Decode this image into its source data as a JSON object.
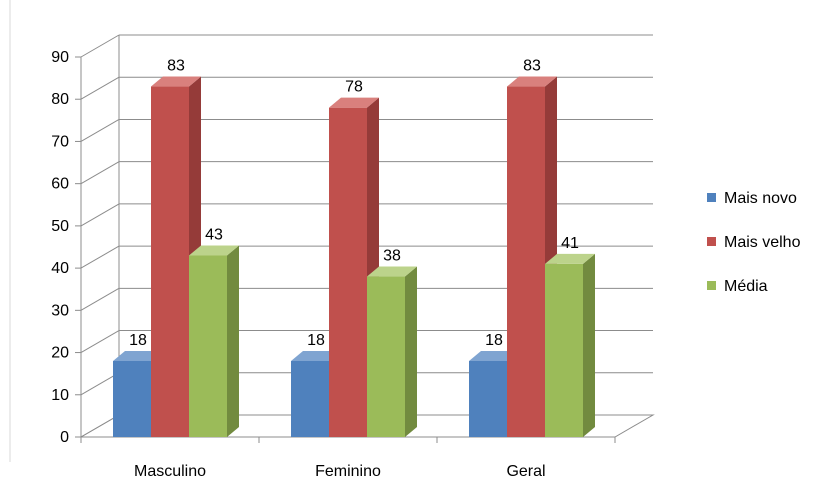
{
  "chart_data": {
    "type": "bar",
    "categories": [
      "Masculino",
      "Feminino",
      "Geral"
    ],
    "series": [
      {
        "name": "Mais novo",
        "values": [
          18,
          18,
          18
        ],
        "color": "#4F81BD",
        "color_dark": "#3A6494",
        "color_light": "#7FA4D1"
      },
      {
        "name": "Mais velho",
        "values": [
          83,
          78,
          83
        ],
        "color": "#C0504D",
        "color_dark": "#953B39",
        "color_light": "#D9807D"
      },
      {
        "name": "Média",
        "values": [
          43,
          38,
          41
        ],
        "color": "#9BBB59",
        "color_dark": "#728B3F",
        "color_light": "#BCD38B"
      }
    ],
    "y_ticks": [
      "0",
      "10",
      "20",
      "30",
      "40",
      "50",
      "60",
      "70",
      "80",
      "90"
    ],
    "ylim": [
      0,
      90
    ],
    "grid": true,
    "legend_position": "right",
    "data_labels": true,
    "style": "3d-clustered-column"
  }
}
